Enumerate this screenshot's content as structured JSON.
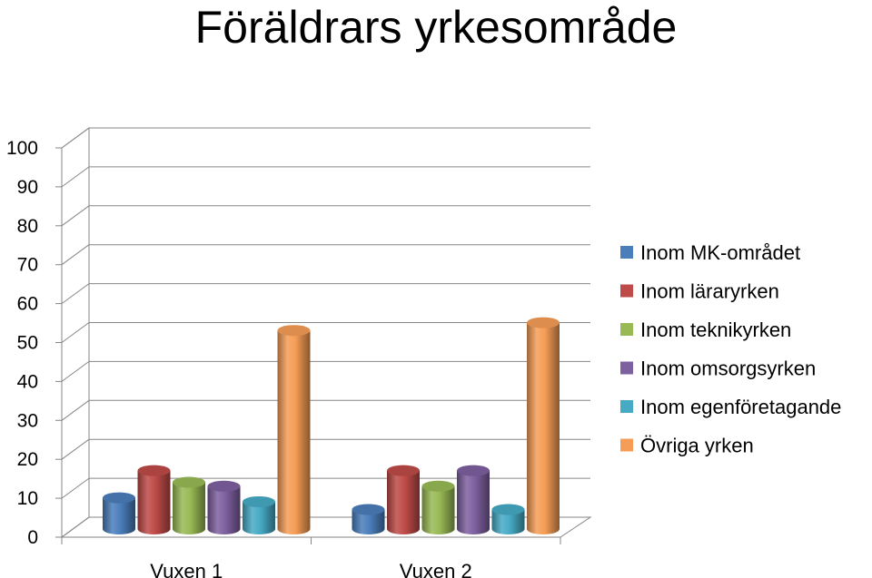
{
  "chart_data": {
    "type": "bar",
    "title": "Föräldrars yrkesområde",
    "categories": [
      "Vuxen 1",
      "Vuxen 2"
    ],
    "series": [
      {
        "name": "Inom MK-området",
        "values": [
          8,
          5
        ],
        "color": "#4a7ebb"
      },
      {
        "name": "Inom läraryrken",
        "values": [
          15,
          15
        ],
        "color": "#be4b48"
      },
      {
        "name": "Inom teknikyrken",
        "values": [
          12,
          11
        ],
        "color": "#98b954"
      },
      {
        "name": "Inom omsorgsyrken",
        "values": [
          11,
          15
        ],
        "color": "#7d60a0"
      },
      {
        "name": "Inom egenföretagande",
        "values": [
          7,
          5
        ],
        "color": "#46aac5"
      },
      {
        "name": "Övriga yrken",
        "values": [
          51,
          53
        ],
        "color": "#f59d56"
      }
    ],
    "ylim": [
      0,
      100
    ],
    "yticks": [
      "0",
      "10",
      "20",
      "30",
      "40",
      "50",
      "60",
      "70",
      "80",
      "90",
      "100"
    ],
    "grid": true,
    "legend_position": "right",
    "style": "3d-cylinder"
  }
}
